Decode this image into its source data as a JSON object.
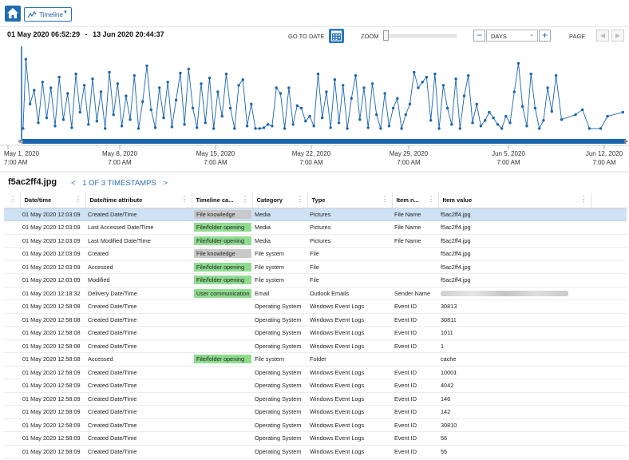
{
  "toolbar": {
    "view_label": "Timeline"
  },
  "timeline": {
    "range_start": "01 May 2020 06:52:29",
    "range_sep": "-",
    "range_end": "13 Jun 2020 20:44:37",
    "goto_label": "GO TO DATE",
    "zoom_label": "ZOOM",
    "zoom_level": 0,
    "scale_value": "DAYS",
    "page_label": "PAGE"
  },
  "chart_data": {
    "type": "scatter",
    "x_ticks": [
      {
        "date": "May 1, 2020",
        "time": "7:00 AM"
      },
      {
        "date": "May 8, 2020",
        "time": "7:00 AM"
      },
      {
        "date": "May 15, 2020",
        "time": "7:00 AM"
      },
      {
        "date": "May 22, 2020",
        "time": "7:00 AM"
      },
      {
        "date": "May 29, 2020",
        "time": "7:00 AM"
      },
      {
        "date": "Jun 5, 2020",
        "time": "7:00 AM"
      },
      {
        "date": "Jun 12, 2020",
        "time": "7:00 AM"
      }
    ],
    "series_color": "#1a65ad",
    "x_start_day": 0.25,
    "x_end_day": 43.5,
    "y_range": [
      0,
      1
    ],
    "points": [
      [
        0.3,
        0.05
      ],
      [
        0.5,
        0.9
      ],
      [
        0.8,
        0.35
      ],
      [
        1.1,
        0.52
      ],
      [
        1.4,
        0.12
      ],
      [
        1.7,
        0.62
      ],
      [
        2.0,
        0.18
      ],
      [
        2.3,
        0.55
      ],
      [
        2.6,
        0.08
      ],
      [
        2.9,
        0.68
      ],
      [
        3.2,
        0.16
      ],
      [
        3.5,
        0.48
      ],
      [
        3.8,
        0.06
      ],
      [
        4.1,
        0.72
      ],
      [
        4.4,
        0.25
      ],
      [
        4.7,
        0.58
      ],
      [
        5.0,
        0.1
      ],
      [
        5.3,
        0.66
      ],
      [
        5.6,
        0.14
      ],
      [
        5.9,
        0.5
      ],
      [
        6.2,
        0.05
      ],
      [
        6.5,
        0.74
      ],
      [
        6.8,
        0.22
      ],
      [
        7.1,
        0.6
      ],
      [
        7.4,
        0.08
      ],
      [
        7.7,
        0.45
      ],
      [
        8.0,
        0.16
      ],
      [
        8.3,
        0.7
      ],
      [
        8.6,
        0.05
      ],
      [
        8.9,
        0.38
      ],
      [
        9.2,
        0.82
      ],
      [
        9.5,
        0.28
      ],
      [
        9.8,
        0.06
      ],
      [
        10.1,
        0.55
      ],
      [
        10.4,
        0.18
      ],
      [
        10.7,
        0.62
      ],
      [
        11.0,
        0.07
      ],
      [
        11.3,
        0.4
      ],
      [
        11.6,
        0.73
      ],
      [
        11.9,
        0.1
      ],
      [
        12.2,
        0.78
      ],
      [
        12.5,
        0.3
      ],
      [
        12.8,
        0.06
      ],
      [
        13.1,
        0.6
      ],
      [
        13.4,
        0.12
      ],
      [
        13.7,
        0.67
      ],
      [
        14.0,
        0.05
      ],
      [
        14.3,
        0.5
      ],
      [
        14.6,
        0.2
      ],
      [
        14.9,
        0.72
      ],
      [
        15.2,
        0.3
      ],
      [
        15.5,
        0.05
      ],
      [
        15.8,
        0.58
      ],
      [
        16.1,
        0.65
      ],
      [
        16.4,
        0.08
      ],
      [
        16.7,
        0.35
      ],
      [
        17.0,
        0.05
      ],
      [
        17.3,
        0.05
      ],
      [
        17.6,
        0.06
      ],
      [
        17.9,
        0.1
      ],
      [
        18.2,
        0.08
      ],
      [
        18.5,
        0.55
      ],
      [
        18.8,
        0.48
      ],
      [
        19.1,
        0.05
      ],
      [
        19.4,
        0.55
      ],
      [
        19.7,
        0.1
      ],
      [
        20.0,
        0.33
      ],
      [
        20.3,
        0.3
      ],
      [
        20.6,
        0.14
      ],
      [
        20.9,
        0.2
      ],
      [
        21.2,
        0.08
      ],
      [
        21.5,
        0.72
      ],
      [
        21.8,
        0.18
      ],
      [
        22.1,
        0.5
      ],
      [
        22.4,
        0.06
      ],
      [
        22.7,
        0.65
      ],
      [
        23.0,
        0.12
      ],
      [
        23.3,
        0.58
      ],
      [
        23.6,
        0.05
      ],
      [
        23.9,
        0.42
      ],
      [
        24.2,
        0.7
      ],
      [
        24.5,
        0.16
      ],
      [
        24.8,
        0.55
      ],
      [
        25.1,
        0.06
      ],
      [
        25.4,
        0.6
      ],
      [
        25.7,
        0.22
      ],
      [
        26.0,
        0.05
      ],
      [
        26.3,
        0.48
      ],
      [
        26.6,
        0.08
      ],
      [
        26.9,
        0.3
      ],
      [
        27.2,
        0.42
      ],
      [
        27.5,
        0.05
      ],
      [
        27.8,
        0.22
      ],
      [
        28.1,
        0.35
      ],
      [
        28.4,
        0.74
      ],
      [
        28.7,
        0.55
      ],
      [
        29.0,
        0.62
      ],
      [
        29.3,
        0.68
      ],
      [
        29.6,
        0.15
      ],
      [
        29.9,
        0.72
      ],
      [
        30.2,
        0.05
      ],
      [
        30.5,
        0.58
      ],
      [
        30.8,
        0.3
      ],
      [
        31.1,
        0.1
      ],
      [
        31.4,
        0.66
      ],
      [
        31.7,
        0.05
      ],
      [
        32.0,
        0.45
      ],
      [
        32.3,
        0.7
      ],
      [
        32.6,
        0.12
      ],
      [
        32.9,
        0.35
      ],
      [
        33.2,
        0.08
      ],
      [
        33.5,
        0.15
      ],
      [
        33.8,
        0.25
      ],
      [
        34.1,
        0.18
      ],
      [
        34.4,
        0.1
      ],
      [
        34.7,
        0.05
      ],
      [
        35.0,
        0.2
      ],
      [
        35.3,
        0.12
      ],
      [
        35.6,
        0.5
      ],
      [
        35.9,
        0.85
      ],
      [
        36.2,
        0.32
      ],
      [
        36.5,
        0.08
      ],
      [
        36.8,
        0.72
      ],
      [
        37.1,
        0.3
      ],
      [
        37.4,
        0.05
      ],
      [
        37.7,
        0.15
      ],
      [
        38.0,
        0.55
      ],
      [
        38.3,
        0.26
      ],
      [
        38.6,
        0.7
      ],
      [
        39.0,
        0.16
      ],
      [
        40.0,
        0.22
      ],
      [
        40.5,
        0.28
      ],
      [
        41.0,
        0.05
      ],
      [
        41.8,
        0.05
      ],
      [
        42.3,
        0.2
      ],
      [
        43.4,
        0.25
      ]
    ]
  },
  "detail": {
    "file_name": "f5ac2ff4.jpg",
    "nav_prev": "<",
    "nav_text": "1 OF 3 TIMESTAMPS",
    "nav_next": ">"
  },
  "table": {
    "columns": [
      "Date/time",
      "Date/time attribute",
      "Timeline ca...",
      "Category",
      "Type",
      "Item n...",
      "Item value"
    ],
    "rows": [
      {
        "dt": "01 May 2020 12:03:09",
        "attr": "Created Date/Time",
        "tl": "File knowledge",
        "cat": "Media",
        "type": "Pictures",
        "name": "File Name",
        "val": "f5ac2ff4.jpg"
      },
      {
        "dt": "01 May 2020 12:03:09",
        "attr": "Last Accessed Date/Time",
        "tl": "File/folder opening",
        "cat": "Media",
        "type": "Pictures",
        "name": "File Name",
        "val": "f5ac2ff4.jpg"
      },
      {
        "dt": "01 May 2020 12:03:09",
        "attr": "Last Modified Date/Time",
        "tl": "File/folder opening",
        "cat": "Media",
        "type": "Pictures",
        "name": "File Name",
        "val": "f5ac2ff4.jpg"
      },
      {
        "dt": "01 May 2020 12:03:09",
        "attr": "Created",
        "tl": "File knowledge",
        "cat": "File system",
        "type": "File",
        "name": "",
        "val": "f5ac2ff4.jpg"
      },
      {
        "dt": "01 May 2020 12:03:09",
        "attr": "Accessed",
        "tl": "File/folder opening",
        "cat": "File system",
        "type": "File",
        "name": "",
        "val": "f5ac2ff4.jpg"
      },
      {
        "dt": "01 May 2020 12:03:09",
        "attr": "Modified",
        "tl": "File/folder opening",
        "cat": "File system",
        "type": "File",
        "name": "",
        "val": "f5ac2ff4.jpg"
      },
      {
        "dt": "01 May 2020 12:18:32",
        "attr": "Delivery Date/Time",
        "tl": "User communication",
        "cat": "Email",
        "type": "Outlook Emails",
        "name": "Sender Name",
        "val": ""
      },
      {
        "dt": "01 May 2020 12:58:08",
        "attr": "Created Date/Time",
        "tl": "",
        "cat": "Operating System",
        "type": "Windows Event Logs",
        "name": "Event ID",
        "val": "30813"
      },
      {
        "dt": "01 May 2020 12:58:08",
        "attr": "Created Date/Time",
        "tl": "",
        "cat": "Operating System",
        "type": "Windows Event Logs",
        "name": "Event ID",
        "val": "30811"
      },
      {
        "dt": "01 May 2020 12:58:08",
        "attr": "Created Date/Time",
        "tl": "",
        "cat": "Operating System",
        "type": "Windows Event Logs",
        "name": "Event ID",
        "val": "1011"
      },
      {
        "dt": "01 May 2020 12:58:08",
        "attr": "Created Date/Time",
        "tl": "",
        "cat": "Operating System",
        "type": "Windows Event Logs",
        "name": "Event ID",
        "val": "1"
      },
      {
        "dt": "01 May 2020 12:58:08",
        "attr": "Accessed",
        "tl": "File/folder opening",
        "cat": "File system",
        "type": "Folder",
        "name": "",
        "val": "cache"
      },
      {
        "dt": "01 May 2020 12:58:09",
        "attr": "Created Date/Time",
        "tl": "",
        "cat": "Operating System",
        "type": "Windows Event Logs",
        "name": "Event ID",
        "val": "10001"
      },
      {
        "dt": "01 May 2020 12:58:09",
        "attr": "Created Date/Time",
        "tl": "",
        "cat": "Operating System",
        "type": "Windows Event Logs",
        "name": "Event ID",
        "val": "4042"
      },
      {
        "dt": "01 May 2020 12:58:09",
        "attr": "Created Date/Time",
        "tl": "",
        "cat": "Operating System",
        "type": "Windows Event Logs",
        "name": "Event ID",
        "val": "146"
      },
      {
        "dt": "01 May 2020 12:58:09",
        "attr": "Created Date/Time",
        "tl": "",
        "cat": "Operating System",
        "type": "Windows Event Logs",
        "name": "Event ID",
        "val": "142"
      },
      {
        "dt": "01 May 2020 12:58:09",
        "attr": "Created Date/Time",
        "tl": "",
        "cat": "Operating System",
        "type": "Windows Event Logs",
        "name": "Event ID",
        "val": "30810"
      },
      {
        "dt": "01 May 2020 12:58:09",
        "attr": "Created Date/Time",
        "tl": "",
        "cat": "Operating System",
        "type": "Windows Event Logs",
        "name": "Event ID",
        "val": "56"
      },
      {
        "dt": "01 May 2020 12:58:09",
        "attr": "Created Date/Time",
        "tl": "",
        "cat": "Operating System",
        "type": "Windows Event Logs",
        "name": "Event ID",
        "val": "55"
      }
    ]
  }
}
